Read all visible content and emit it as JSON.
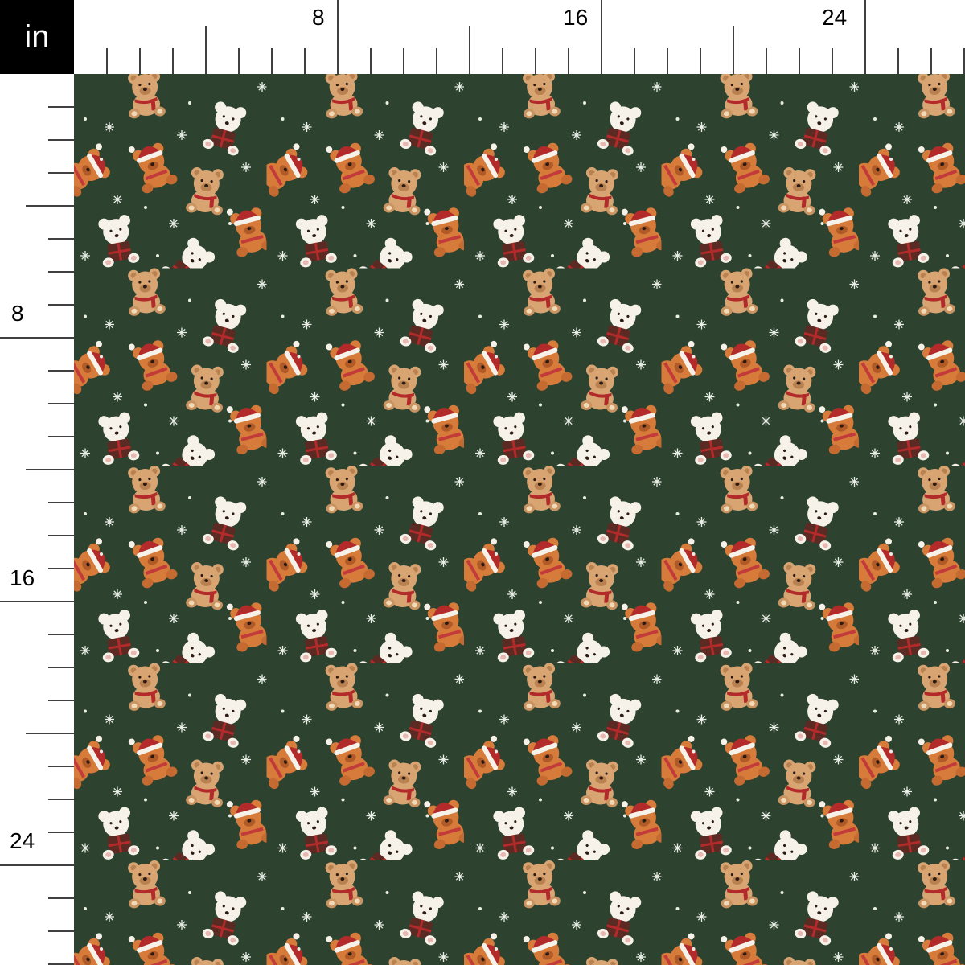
{
  "ruler": {
    "unit": "in",
    "top_labels": [
      "8",
      "16",
      "24"
    ],
    "left_labels": [
      "8",
      "16",
      "24"
    ]
  },
  "fabric": {
    "background": "#2d4330",
    "motifs": [
      "tan-bear-with-scarf",
      "orange-bear-with-santa-hat",
      "white-polar-bear-with-gift",
      "snowflake",
      "snow-dot"
    ],
    "colors": {
      "tan": "#d7a472",
      "orange": "#d77b3a",
      "white": "#f6f2ea",
      "red": "#b32a2a",
      "plaid": "#5b2a22"
    }
  }
}
